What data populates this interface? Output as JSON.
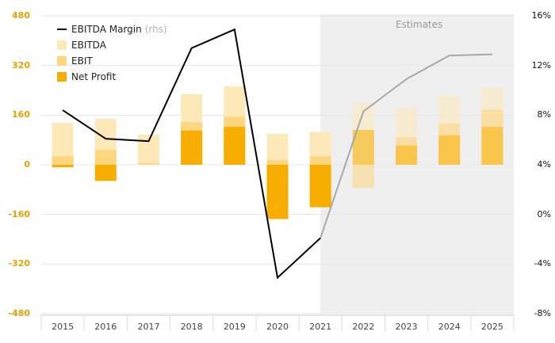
{
  "chart_data": {
    "type": "bar",
    "categories": [
      "2015",
      "2016",
      "2017",
      "2018",
      "2019",
      "2020",
      "2021",
      "2022",
      "2023",
      "2024",
      "2025"
    ],
    "series": [
      {
        "name": "EBITDA",
        "type": "bar",
        "color": "#fde8b8",
        "values": [
          135,
          148,
          97,
          228,
          253,
          100,
          105,
          198,
          183,
          223,
          248
        ]
      },
      {
        "name": "EBIT",
        "type": "bar",
        "color": "#fdd680",
        "values": [
          27,
          48,
          5,
          137,
          155,
          15,
          27,
          -75,
          89,
          133,
          178
        ]
      },
      {
        "name": "Net Profit",
        "type": "bar",
        "color": "#f7ae00",
        "values": [
          -8,
          -52,
          0,
          110,
          122,
          -175,
          -137,
          112,
          62,
          95,
          122
        ]
      },
      {
        "name": "EBITDA Margin",
        "axis": "rhs",
        "type": "line",
        "color": "#000000",
        "estimate_color": "#a8a8a8",
        "values": [
          8.4,
          6.1,
          5.9,
          13.4,
          14.9,
          -5.1,
          -1.9,
          8.3,
          10.9,
          12.8,
          12.9
        ]
      }
    ],
    "estimates_from": "2021",
    "estimates_label": "Estimates",
    "left_axis": {
      "min": -480,
      "max": 480,
      "ticks": [
        480,
        320,
        160,
        0,
        -160,
        -320,
        -480
      ],
      "labels": [
        "480",
        "320",
        "160",
        "0",
        "-160",
        "-320",
        "-480"
      ]
    },
    "right_axis": {
      "min": -8,
      "max": 16,
      "ticks": [
        16,
        12,
        8,
        4,
        0,
        -4,
        -8
      ],
      "labels": [
        "16%",
        "12%",
        "8%",
        "4%",
        "0%",
        "-4%",
        "-8%"
      ]
    },
    "legend": {
      "line_label": "EBITDA Margin",
      "line_suffix": "(rhs)",
      "items": [
        "EBITDA",
        "EBIT",
        "Net Profit"
      ]
    }
  }
}
